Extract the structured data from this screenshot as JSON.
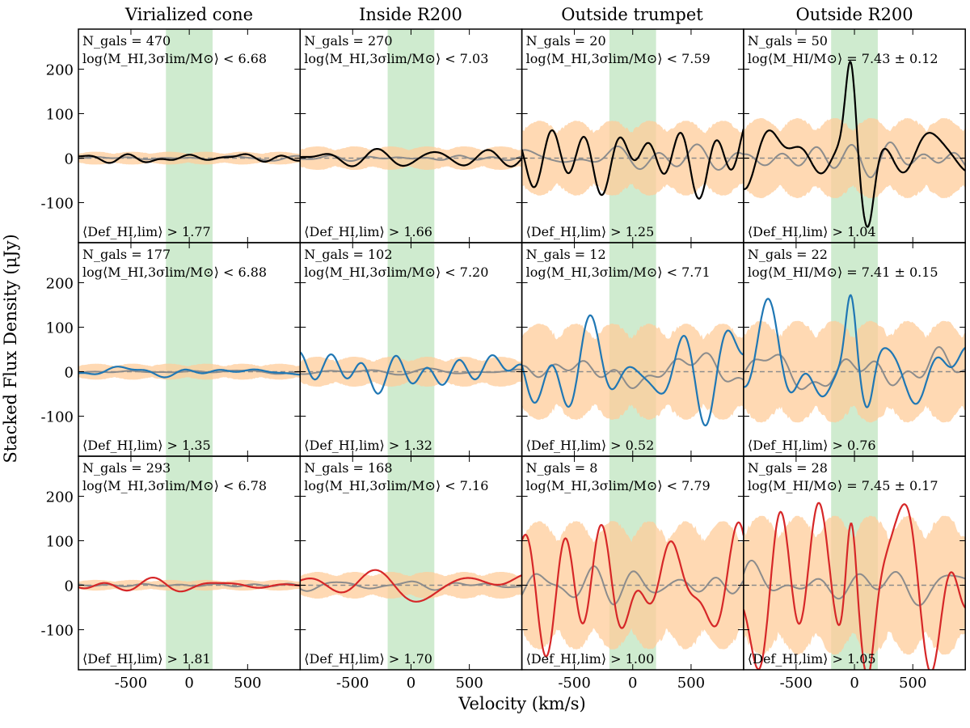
{
  "figure": {
    "ylabel": "Stacked Flux Density (μJy)",
    "xlabel": "Velocity (km/s)",
    "columns": [
      "Virialized cone",
      "Inside R200",
      "Outside trumpet",
      "Outside R200"
    ]
  },
  "colors": {
    "row1": "#000000",
    "row2": "#1f77b4",
    "row3": "#d62728",
    "band": "#ffcc99",
    "window": "#a8dba8",
    "control": "#8c8c8c"
  },
  "chart_data": {
    "type": "line",
    "grid": "3x4",
    "xlim": [
      -950,
      950
    ],
    "ylim": [
      -190,
      290
    ],
    "xticks": [
      -500,
      0,
      500
    ],
    "yticks": [
      -100,
      0,
      100,
      200
    ],
    "shade_window": [
      -200,
      200
    ],
    "panels": [
      {
        "row": 0,
        "col": 0,
        "ngals": "N_gals = 470",
        "mass": "log⟨M_HI,3σlim/M⊙⟩ < 6.68",
        "def": "⟨Def_HI,lim⟩ > 1.77",
        "band": 12,
        "amp": 7,
        "seed": 1,
        "peak": 0
      },
      {
        "row": 0,
        "col": 1,
        "ngals": "N_gals = 270",
        "mass": "log⟨M_HI,3σlim/M⊙⟩ < 7.03",
        "def": "⟨Def_HI,lim⟩ > 1.66",
        "band": 22,
        "amp": 18,
        "seed": 2,
        "peak": 0
      },
      {
        "row": 0,
        "col": 2,
        "ngals": "N_gals = 20",
        "mass": "log⟨M_HI,3σlim/M⊙⟩ < 7.59",
        "def": "⟨Def_HI,lim⟩ > 1.25",
        "band": 70,
        "amp": 55,
        "seed": 3,
        "peak": 0
      },
      {
        "row": 0,
        "col": 3,
        "ngals": "N_gals = 50",
        "mass": "log⟨M_HI/M⊙⟩ = 7.43 ± 0.12",
        "def": "⟨Def_HI,lim⟩ > 1.04",
        "band": 75,
        "amp": 60,
        "seed": 4,
        "peak": 230
      },
      {
        "row": 1,
        "col": 0,
        "ngals": "N_gals = 177",
        "mass": "log⟨M_HI,3σlim/M⊙⟩ < 6.88",
        "def": "⟨Def_HI,lim⟩ > 1.35",
        "band": 15,
        "amp": 9,
        "seed": 5,
        "peak": 0
      },
      {
        "row": 1,
        "col": 1,
        "ngals": "N_gals = 102",
        "mass": "log⟨M_HI,3σlim/M⊙⟩ < 7.20",
        "def": "⟨Def_HI,lim⟩ > 1.32",
        "band": 28,
        "amp": 28,
        "seed": 6,
        "peak": 0
      },
      {
        "row": 1,
        "col": 2,
        "ngals": "N_gals = 12",
        "mass": "log⟨M_HI,3σlim/M⊙⟩ < 7.71",
        "def": "⟨Def_HI,lim⟩ > 0.52",
        "band": 90,
        "amp": 85,
        "seed": 7,
        "peak": 0
      },
      {
        "row": 1,
        "col": 3,
        "ngals": "N_gals = 22",
        "mass": "log⟨M_HI/M⊙⟩ = 7.41 ± 0.15",
        "def": "⟨Def_HI,lim⟩ > 0.76",
        "band": 95,
        "amp": 90,
        "seed": 8,
        "peak": 190
      },
      {
        "row": 2,
        "col": 0,
        "ngals": "N_gals = 293",
        "mass": "log⟨M_HI,3σlim/M⊙⟩ < 6.78",
        "def": "⟨Def_HI,lim⟩ > 1.81",
        "band": 10,
        "amp": 8,
        "seed": 9,
        "peak": 0
      },
      {
        "row": 2,
        "col": 1,
        "ngals": "N_gals = 168",
        "mass": "log⟨M_HI,3σlim/M⊙⟩ < 7.16",
        "def": "⟨Def_HI,lim⟩ > 1.70",
        "band": 25,
        "amp": 25,
        "seed": 10,
        "peak": 0
      },
      {
        "row": 2,
        "col": 2,
        "ngals": "N_gals = 8",
        "mass": "log⟨M_HI,3σlim/M⊙⟩ < 7.79",
        "def": "⟨Def_HI,lim⟩ > 1.00",
        "band": 120,
        "amp": 110,
        "seed": 11,
        "peak": 0
      },
      {
        "row": 2,
        "col": 3,
        "ngals": "N_gals = 28",
        "mass": "log⟨M_HI/M⊙⟩ = 7.45 ± 0.17",
        "def": "⟨Def_HI,lim⟩ > 1.05",
        "band": 130,
        "amp": 120,
        "seed": 12,
        "peak": 260
      }
    ]
  }
}
